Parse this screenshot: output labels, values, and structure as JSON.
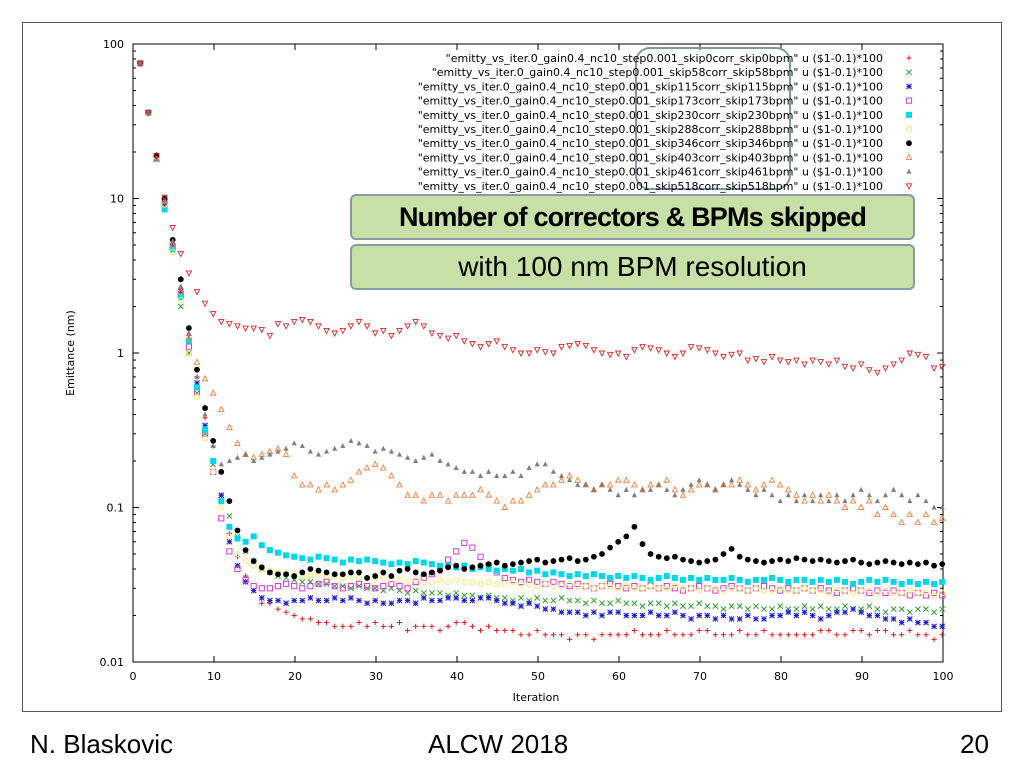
{
  "footer": {
    "author": "N. Blaskovic",
    "event": "ALCW 2018",
    "page": "20"
  },
  "callout": {
    "line1": "Number of correctors & BPMs skipped",
    "line2": "with 100 nm BPM resolution",
    "fill_color": "#c6e0a6"
  },
  "chart_data": {
    "type": "scatter",
    "title": "",
    "xlabel": "Iteration",
    "ylabel": "Emittance (nm)",
    "xlim": [
      0,
      100
    ],
    "ylim": [
      0.01,
      100
    ],
    "yscale": "log",
    "x_ticks": [
      "0",
      "10",
      "20",
      "30",
      "40",
      "50",
      "60",
      "70",
      "80",
      "90",
      "100"
    ],
    "y_ticks": [
      "0.01",
      "0.1",
      "1",
      "10",
      "100"
    ],
    "grid": false,
    "legend_position": "top-right",
    "series": [
      {
        "name": "\"emitty_vs_iter.0_gain0.4_nc10_step0.001_skip0corr_skip0bpm\" u ($1-0.1)*100",
        "color": "#e41a1c",
        "marker": "plus",
        "values": [
          75,
          36,
          18.5,
          9.8,
          5.1,
          2.6,
          1.3,
          0.7,
          0.38,
          0.25,
          0.12,
          0.068,
          0.048,
          0.036,
          0.029,
          0.024,
          0.024,
          0.022,
          0.021,
          0.02,
          0.019,
          0.019,
          0.018,
          0.018,
          0.017,
          0.017,
          0.017,
          0.018,
          0.017,
          0.018,
          0.017,
          0.017,
          0.018,
          0.016,
          0.017,
          0.017,
          0.017,
          0.016,
          0.017,
          0.018,
          0.018,
          0.017,
          0.016,
          0.017,
          0.016,
          0.016,
          0.016,
          0.015,
          0.015,
          0.016,
          0.015,
          0.015,
          0.015,
          0.014,
          0.015,
          0.015,
          0.014,
          0.015,
          0.015,
          0.015,
          0.015,
          0.016,
          0.015,
          0.015,
          0.015,
          0.016,
          0.015,
          0.015,
          0.015,
          0.016,
          0.016,
          0.015,
          0.015,
          0.015,
          0.016,
          0.015,
          0.015,
          0.016,
          0.015,
          0.015,
          0.015,
          0.015,
          0.015,
          0.015,
          0.016,
          0.016,
          0.015,
          0.015,
          0.016,
          0.016,
          0.015,
          0.016,
          0.016,
          0.015,
          0.015,
          0.016,
          0.015,
          0.015,
          0.014,
          0.015
        ]
      },
      {
        "name": "\"emitty_vs_iter.0_gain0.4_nc10_step0.001_skip58corr_skip58bpm\" u ($1-0.1)*100",
        "color": "#2ca02c",
        "marker": "x",
        "values": [
          75,
          36,
          18,
          9.5,
          4.6,
          2.0,
          1.0,
          0.55,
          0.3,
          0.19,
          0.12,
          0.088,
          0.065,
          0.052,
          0.045,
          0.04,
          0.038,
          0.036,
          0.035,
          0.034,
          0.033,
          0.033,
          0.032,
          0.032,
          0.031,
          0.031,
          0.03,
          0.031,
          0.03,
          0.03,
          0.029,
          0.03,
          0.029,
          0.028,
          0.029,
          0.028,
          0.028,
          0.028,
          0.027,
          0.028,
          0.027,
          0.027,
          0.026,
          0.027,
          0.026,
          0.026,
          0.025,
          0.026,
          0.025,
          0.026,
          0.025,
          0.025,
          0.026,
          0.025,
          0.025,
          0.024,
          0.025,
          0.024,
          0.024,
          0.025,
          0.024,
          0.024,
          0.023,
          0.024,
          0.024,
          0.023,
          0.024,
          0.023,
          0.023,
          0.024,
          0.023,
          0.023,
          0.022,
          0.023,
          0.023,
          0.022,
          0.023,
          0.022,
          0.022,
          0.023,
          0.022,
          0.022,
          0.023,
          0.022,
          0.023,
          0.022,
          0.022,
          0.023,
          0.022,
          0.022,
          0.023,
          0.022,
          0.021,
          0.022,
          0.022,
          0.021,
          0.022,
          0.022,
          0.021,
          0.022
        ]
      },
      {
        "name": "\"emitty_vs_iter.0_gain0.4_nc10_step0.001_skip115corr_skip115bpm\" u ($1-0.1)*100",
        "color": "#1f1fd0",
        "marker": "star",
        "values": [
          75,
          36,
          18,
          9.3,
          4.9,
          2.5,
          1.2,
          0.64,
          0.34,
          0.2,
          0.12,
          0.06,
          0.042,
          0.033,
          0.029,
          0.026,
          0.025,
          0.025,
          0.024,
          0.025,
          0.025,
          0.026,
          0.025,
          0.025,
          0.026,
          0.025,
          0.026,
          0.025,
          0.024,
          0.025,
          0.024,
          0.024,
          0.025,
          0.025,
          0.024,
          0.026,
          0.025,
          0.025,
          0.026,
          0.026,
          0.025,
          0.025,
          0.026,
          0.026,
          0.025,
          0.024,
          0.024,
          0.023,
          0.024,
          0.023,
          0.022,
          0.022,
          0.021,
          0.021,
          0.021,
          0.02,
          0.021,
          0.02,
          0.021,
          0.021,
          0.02,
          0.02,
          0.02,
          0.021,
          0.02,
          0.02,
          0.021,
          0.02,
          0.019,
          0.02,
          0.02,
          0.019,
          0.02,
          0.019,
          0.019,
          0.02,
          0.019,
          0.019,
          0.02,
          0.02,
          0.021,
          0.02,
          0.021,
          0.02,
          0.019,
          0.02,
          0.021,
          0.021,
          0.022,
          0.021,
          0.02,
          0.02,
          0.019,
          0.019,
          0.018,
          0.019,
          0.018,
          0.018,
          0.017,
          0.017
        ]
      },
      {
        "name": "\"emitty_vs_iter.0_gain0.4_nc10_step0.001_skip173corr_skip173bpm\" u ($1-0.1)*100",
        "color": "#d63ad6",
        "marker": "square-open",
        "values": [
          75,
          36,
          18,
          9.3,
          4.8,
          2.4,
          1.1,
          0.56,
          0.3,
          0.17,
          0.085,
          0.052,
          0.04,
          0.034,
          0.031,
          0.03,
          0.03,
          0.031,
          0.032,
          0.031,
          0.03,
          0.031,
          0.032,
          0.033,
          0.031,
          0.03,
          0.031,
          0.032,
          0.031,
          0.03,
          0.031,
          0.032,
          0.031,
          0.03,
          0.033,
          0.035,
          0.037,
          0.04,
          0.046,
          0.052,
          0.059,
          0.055,
          0.048,
          0.042,
          0.038,
          0.035,
          0.034,
          0.033,
          0.034,
          0.033,
          0.032,
          0.033,
          0.032,
          0.031,
          0.032,
          0.031,
          0.03,
          0.031,
          0.032,
          0.031,
          0.03,
          0.031,
          0.03,
          0.031,
          0.03,
          0.031,
          0.03,
          0.029,
          0.03,
          0.031,
          0.03,
          0.029,
          0.03,
          0.031,
          0.03,
          0.029,
          0.03,
          0.031,
          0.03,
          0.029,
          0.03,
          0.029,
          0.03,
          0.029,
          0.03,
          0.029,
          0.028,
          0.029,
          0.03,
          0.029,
          0.028,
          0.029,
          0.028,
          0.029,
          0.028,
          0.027,
          0.028,
          0.027,
          0.028,
          0.027
        ]
      },
      {
        "name": "\"emitty_vs_iter.0_gain0.4_nc10_step0.001_skip230corr_skip230bpm\" u ($1-0.1)*100",
        "color": "#00d8e8",
        "marker": "square-filled",
        "values": [
          75,
          36,
          18,
          8.5,
          4.7,
          2.3,
          1.2,
          0.6,
          0.32,
          0.2,
          0.11,
          0.075,
          0.063,
          0.06,
          0.065,
          0.057,
          0.053,
          0.051,
          0.049,
          0.048,
          0.047,
          0.046,
          0.048,
          0.047,
          0.046,
          0.044,
          0.046,
          0.045,
          0.046,
          0.045,
          0.044,
          0.043,
          0.044,
          0.043,
          0.045,
          0.044,
          0.043,
          0.042,
          0.042,
          0.041,
          0.042,
          0.04,
          0.041,
          0.04,
          0.039,
          0.04,
          0.039,
          0.04,
          0.038,
          0.039,
          0.037,
          0.038,
          0.037,
          0.036,
          0.037,
          0.036,
          0.037,
          0.036,
          0.035,
          0.036,
          0.035,
          0.036,
          0.035,
          0.034,
          0.035,
          0.036,
          0.035,
          0.034,
          0.035,
          0.034,
          0.035,
          0.034,
          0.034,
          0.035,
          0.034,
          0.033,
          0.034,
          0.034,
          0.035,
          0.034,
          0.033,
          0.034,
          0.034,
          0.033,
          0.034,
          0.033,
          0.034,
          0.033,
          0.032,
          0.033,
          0.034,
          0.033,
          0.034,
          0.033,
          0.032,
          0.033,
          0.032,
          0.033,
          0.032,
          0.033
        ]
      },
      {
        "name": "\"emitty_vs_iter.0_gain0.4_nc10_step0.001_skip288corr_skip288bpm\" u ($1-0.1)*100",
        "color": "#ecec6e",
        "marker": "circle-open",
        "values": [
          75,
          36,
          18,
          9.1,
          4.5,
          2.2,
          1.0,
          0.52,
          0.28,
          0.17,
          0.1,
          0.065,
          0.05,
          0.045,
          0.042,
          0.04,
          0.039,
          0.038,
          0.037,
          0.037,
          0.036,
          0.036,
          0.037,
          0.036,
          0.036,
          0.035,
          0.036,
          0.035,
          0.035,
          0.034,
          0.035,
          0.034,
          0.034,
          0.033,
          0.034,
          0.033,
          0.033,
          0.034,
          0.033,
          0.034,
          0.033,
          0.033,
          0.032,
          0.033,
          0.032,
          0.032,
          0.033,
          0.032,
          0.032,
          0.031,
          0.032,
          0.031,
          0.031,
          0.032,
          0.031,
          0.031,
          0.03,
          0.031,
          0.031,
          0.03,
          0.031,
          0.03,
          0.03,
          0.031,
          0.03,
          0.03,
          0.031,
          0.03,
          0.03,
          0.029,
          0.03,
          0.03,
          0.029,
          0.03,
          0.03,
          0.029,
          0.03,
          0.029,
          0.029,
          0.03,
          0.029,
          0.029,
          0.03,
          0.029,
          0.029,
          0.028,
          0.029,
          0.029,
          0.028,
          0.029,
          0.029,
          0.028,
          0.029,
          0.028,
          0.028,
          0.029,
          0.028,
          0.028,
          0.027,
          0.028
        ]
      },
      {
        "name": "\"emitty_vs_iter.0_gain0.4_nc10_step0.001_skip346corr_skip346bpm\" u ($1-0.1)*100",
        "color": "#000000",
        "marker": "circle-filled",
        "values": [
          75,
          36,
          19,
          10,
          5.4,
          3.0,
          1.45,
          0.78,
          0.44,
          0.27,
          0.17,
          0.11,
          0.071,
          0.053,
          0.045,
          0.041,
          0.038,
          0.037,
          0.037,
          0.036,
          0.038,
          0.04,
          0.039,
          0.038,
          0.037,
          0.037,
          0.038,
          0.038,
          0.035,
          0.036,
          0.038,
          0.036,
          0.039,
          0.04,
          0.038,
          0.037,
          0.038,
          0.039,
          0.041,
          0.042,
          0.04,
          0.041,
          0.042,
          0.043,
          0.044,
          0.042,
          0.043,
          0.044,
          0.045,
          0.046,
          0.044,
          0.045,
          0.046,
          0.047,
          0.045,
          0.046,
          0.048,
          0.05,
          0.055,
          0.06,
          0.065,
          0.075,
          0.058,
          0.05,
          0.048,
          0.047,
          0.048,
          0.046,
          0.045,
          0.044,
          0.045,
          0.046,
          0.05,
          0.054,
          0.048,
          0.046,
          0.045,
          0.044,
          0.045,
          0.046,
          0.045,
          0.047,
          0.046,
          0.045,
          0.046,
          0.045,
          0.044,
          0.045,
          0.046,
          0.044,
          0.043,
          0.044,
          0.045,
          0.044,
          0.043,
          0.044,
          0.043,
          0.044,
          0.042,
          0.043
        ]
      },
      {
        "name": "\"emitty_vs_iter.0_gain0.4_nc10_step0.001_skip403corr_skip403bpm\" u ($1-0.1)*100",
        "color": "#f07f3c",
        "marker": "triangle-up-open",
        "values": [
          75,
          36,
          18,
          9.6,
          5.0,
          2.5,
          1.25,
          0.87,
          0.68,
          0.55,
          0.43,
          0.33,
          0.26,
          0.22,
          0.21,
          0.22,
          0.23,
          0.24,
          0.22,
          0.16,
          0.14,
          0.14,
          0.13,
          0.14,
          0.13,
          0.14,
          0.15,
          0.17,
          0.18,
          0.19,
          0.18,
          0.16,
          0.14,
          0.12,
          0.12,
          0.11,
          0.12,
          0.12,
          0.11,
          0.12,
          0.12,
          0.12,
          0.13,
          0.12,
          0.11,
          0.1,
          0.11,
          0.11,
          0.12,
          0.13,
          0.14,
          0.14,
          0.15,
          0.16,
          0.15,
          0.14,
          0.13,
          0.14,
          0.14,
          0.15,
          0.15,
          0.14,
          0.13,
          0.14,
          0.14,
          0.15,
          0.13,
          0.12,
          0.13,
          0.14,
          0.14,
          0.13,
          0.14,
          0.14,
          0.15,
          0.14,
          0.13,
          0.14,
          0.15,
          0.14,
          0.13,
          0.12,
          0.11,
          0.12,
          0.11,
          0.12,
          0.11,
          0.1,
          0.11,
          0.1,
          0.11,
          0.09,
          0.1,
          0.09,
          0.08,
          0.09,
          0.08,
          0.09,
          0.08,
          0.085
        ]
      },
      {
        "name": "\"emitty_vs_iter.0_gain0.4_nc10_step0.001_skip461corr_skip461bpm\" u ($1-0.1)*100",
        "color": "#808080",
        "marker": "triangle-up-filled",
        "values": [
          75,
          36,
          18,
          9.7,
          5.3,
          2.7,
          1.35,
          0.7,
          0.4,
          0.25,
          0.19,
          0.2,
          0.21,
          0.22,
          0.2,
          0.21,
          0.22,
          0.23,
          0.24,
          0.26,
          0.25,
          0.23,
          0.22,
          0.23,
          0.24,
          0.25,
          0.27,
          0.26,
          0.25,
          0.23,
          0.24,
          0.23,
          0.22,
          0.21,
          0.2,
          0.21,
          0.22,
          0.2,
          0.19,
          0.18,
          0.17,
          0.17,
          0.16,
          0.17,
          0.16,
          0.16,
          0.17,
          0.16,
          0.18,
          0.19,
          0.19,
          0.17,
          0.16,
          0.15,
          0.14,
          0.14,
          0.13,
          0.14,
          0.13,
          0.12,
          0.13,
          0.12,
          0.13,
          0.13,
          0.14,
          0.13,
          0.12,
          0.13,
          0.14,
          0.15,
          0.14,
          0.13,
          0.14,
          0.15,
          0.14,
          0.13,
          0.12,
          0.13,
          0.12,
          0.11,
          0.12,
          0.11,
          0.12,
          0.11,
          0.12,
          0.11,
          0.12,
          0.11,
          0.12,
          0.13,
          0.12,
          0.11,
          0.12,
          0.13,
          0.12,
          0.11,
          0.12,
          0.11,
          0.1,
          0.1
        ]
      },
      {
        "name": "\"emitty_vs_iter.0_gain0.4_nc10_step0.001_skip518corr_skip518bpm\" u ($1-0.1)*100",
        "color": "#d62728",
        "marker": "triangle-down-open",
        "values": [
          75,
          36,
          19,
          10.2,
          6.5,
          4.4,
          3.3,
          2.5,
          2.1,
          1.8,
          1.6,
          1.55,
          1.5,
          1.45,
          1.45,
          1.42,
          1.3,
          1.55,
          1.5,
          1.6,
          1.65,
          1.6,
          1.5,
          1.4,
          1.35,
          1.4,
          1.5,
          1.6,
          1.5,
          1.35,
          1.4,
          1.3,
          1.4,
          1.5,
          1.6,
          1.5,
          1.35,
          1.3,
          1.25,
          1.3,
          1.2,
          1.15,
          1.1,
          1.15,
          1.2,
          1.1,
          1.05,
          1.0,
          1.0,
          1.05,
          1.02,
          1.0,
          1.1,
          1.12,
          1.15,
          1.12,
          1.05,
          1.0,
          0.98,
          1.0,
          0.95,
          1.05,
          1.1,
          1.08,
          1.05,
          1.0,
          0.95,
          1.0,
          1.1,
          1.08,
          1.05,
          1.0,
          0.95,
          0.98,
          1.0,
          0.9,
          0.92,
          0.88,
          0.95,
          0.9,
          0.88,
          0.9,
          0.85,
          0.9,
          0.88,
          0.85,
          0.9,
          0.82,
          0.8,
          0.85,
          0.78,
          0.75,
          0.8,
          0.85,
          0.9,
          1.0,
          0.98,
          0.95,
          0.8,
          0.82
        ]
      }
    ]
  }
}
